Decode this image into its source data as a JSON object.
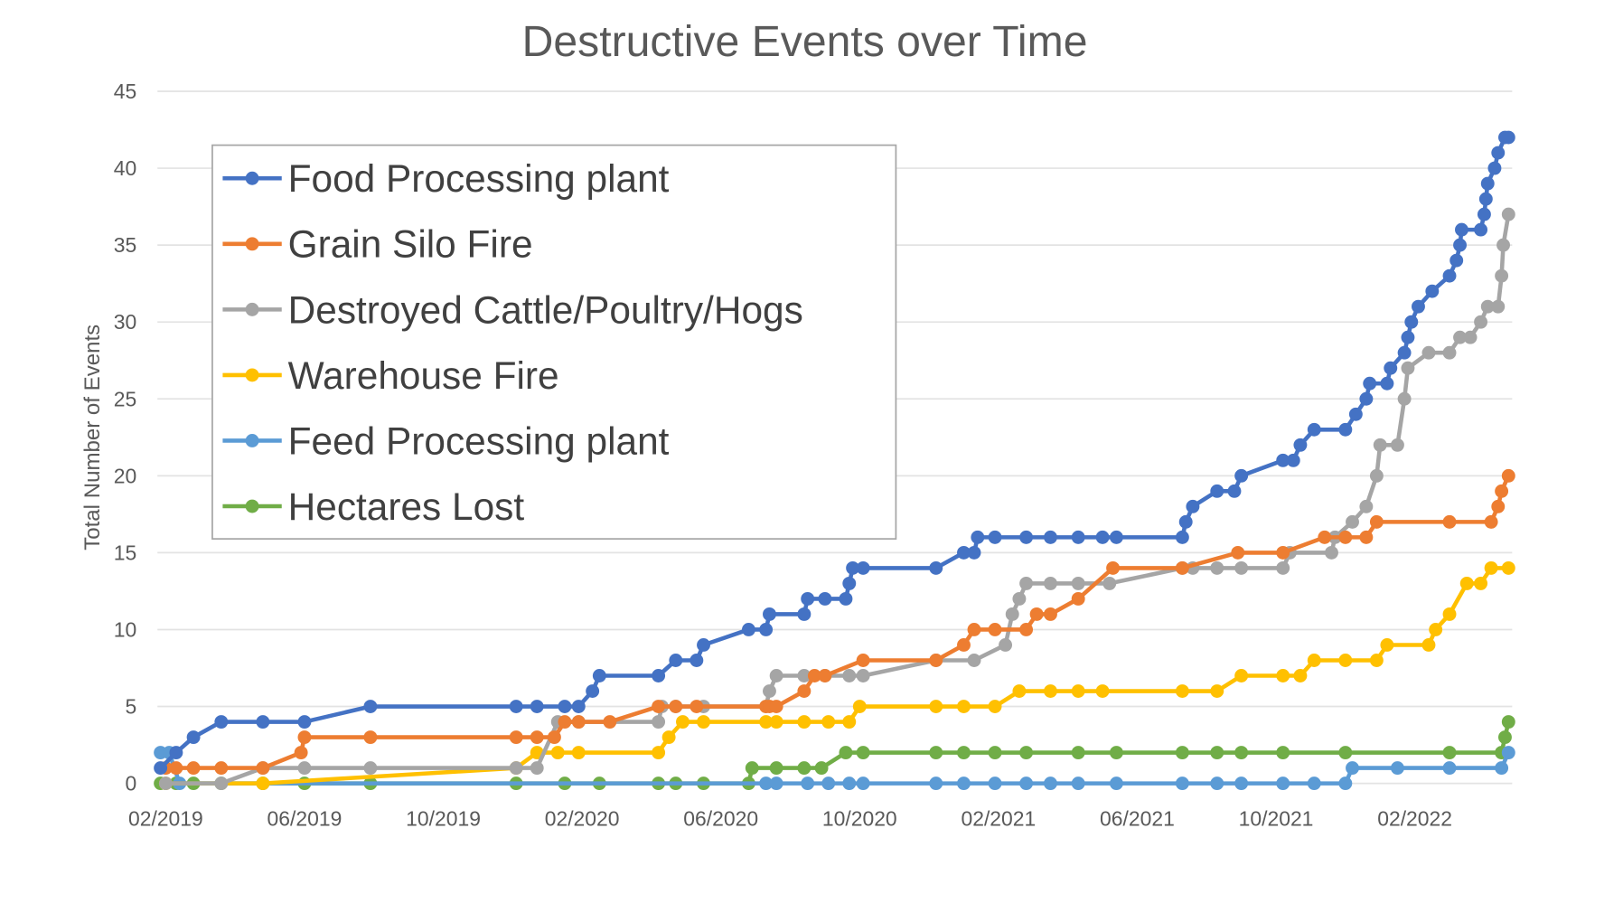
{
  "chart_data": {
    "type": "line",
    "title": "Destructive Events over Time",
    "xlabel": "",
    "ylabel": "Total Number of Events",
    "x_unit": "months since 02/2019",
    "xlim": [
      -0.2,
      38.8
    ],
    "ylim": [
      0,
      45
    ],
    "yticks": [
      0,
      5,
      10,
      15,
      20,
      25,
      30,
      35,
      40,
      45
    ],
    "xticks": [
      {
        "value": 0,
        "label": "02/2019"
      },
      {
        "value": 4,
        "label": "06/2019"
      },
      {
        "value": 8,
        "label": "10/2019"
      },
      {
        "value": 12,
        "label": "02/2020"
      },
      {
        "value": 16,
        "label": "06/2020"
      },
      {
        "value": 20,
        "label": "10/2020"
      },
      {
        "value": 24,
        "label": "02/2021"
      },
      {
        "value": 28,
        "label": "06/2021"
      },
      {
        "value": 32,
        "label": "10/2021"
      },
      {
        "value": 36,
        "label": "02/2022"
      }
    ],
    "grid": true,
    "legend_position": "top-left",
    "series": [
      {
        "name": "Food Processing plant",
        "color": "#4472C4",
        "x": [
          -0.15,
          0.3,
          0.8,
          1.6,
          2.8,
          4.0,
          5.9,
          10.1,
          10.7,
          11.5,
          11.9,
          12.3,
          12.5,
          14.2,
          14.7,
          15.3,
          15.5,
          16.8,
          17.3,
          17.4,
          18.4,
          18.5,
          19.0,
          19.6,
          19.7,
          19.8,
          20.1,
          22.2,
          23.0,
          23.3,
          23.4,
          23.9,
          24.8,
          25.5,
          26.3,
          27.0,
          27.4,
          29.3,
          29.4,
          29.6,
          30.3,
          30.8,
          31.0,
          32.2,
          32.5,
          32.7,
          33.1,
          34.0,
          34.3,
          34.6,
          34.7,
          35.2,
          35.3,
          35.7,
          35.8,
          35.9,
          36.1,
          36.5,
          37.0,
          37.2,
          37.3,
          37.35,
          37.9,
          38.0,
          38.05,
          38.1,
          38.3,
          38.4,
          38.6,
          38.7
        ],
        "y": [
          1,
          2,
          3,
          4,
          4,
          4,
          5,
          5,
          5,
          5,
          5,
          6,
          7,
          7,
          8,
          8,
          9,
          10,
          10,
          11,
          11,
          12,
          12,
          12,
          13,
          14,
          14,
          14,
          15,
          15,
          16,
          16,
          16,
          16,
          16,
          16,
          16,
          16,
          17,
          18,
          19,
          19,
          20,
          21,
          21,
          22,
          23,
          23,
          24,
          25,
          26,
          26,
          27,
          28,
          29,
          30,
          31,
          32,
          33,
          34,
          35,
          36,
          36,
          37,
          38,
          39,
          40,
          41,
          42,
          42
        ]
      },
      {
        "name": "Grain Silo Fire",
        "color": "#ED7D31",
        "x": [
          0,
          0.3,
          0.8,
          1.6,
          2.8,
          3.9,
          4.0,
          5.9,
          10.1,
          10.7,
          11.2,
          11.5,
          11.9,
          12.8,
          14.2,
          14.7,
          15.3,
          17.3,
          17.4,
          17.6,
          18.4,
          18.7,
          19.0,
          20.1,
          22.2,
          23.0,
          23.3,
          23.9,
          24.8,
          25.1,
          25.5,
          26.3,
          27.3,
          29.3,
          30.9,
          32.2,
          33.4,
          34.0,
          34.6,
          34.9,
          37.0,
          38.2,
          38.4,
          38.5,
          38.7
        ],
        "y": [
          1,
          1,
          1,
          1,
          1,
          2,
          3,
          3,
          3,
          3,
          3,
          4,
          4,
          4,
          5,
          5,
          5,
          5,
          5,
          5,
          6,
          7,
          7,
          8,
          8,
          9,
          10,
          10,
          10,
          11,
          11,
          12,
          14,
          14,
          15,
          15,
          16,
          16,
          16,
          17,
          17,
          17,
          18,
          19,
          20
        ]
      },
      {
        "name": "Destroyed Cattle/Poultry/Hogs",
        "color": "#A5A5A5",
        "x": [
          0,
          1.6,
          2.8,
          4.0,
          5.9,
          10.1,
          10.7,
          11.3,
          11.9,
          14.2,
          14.3,
          14.7,
          15.5,
          17.3,
          17.4,
          17.6,
          18.4,
          19.0,
          19.7,
          20.1,
          22.2,
          23.3,
          24.2,
          24.4,
          24.6,
          24.8,
          25.5,
          26.3,
          27.2,
          29.3,
          29.6,
          30.3,
          31.0,
          32.2,
          32.4,
          33.6,
          33.7,
          34.2,
          34.6,
          34.9,
          35.0,
          35.5,
          35.7,
          35.8,
          36.4,
          37.0,
          37.3,
          37.6,
          37.9,
          38.1,
          38.4,
          38.5,
          38.55,
          38.7
        ],
        "y": [
          0,
          0,
          1,
          1,
          1,
          1,
          1,
          4,
          4,
          4,
          5,
          5,
          5,
          5,
          6,
          7,
          7,
          7,
          7,
          7,
          8,
          8,
          9,
          11,
          12,
          13,
          13,
          13,
          13,
          14,
          14,
          14,
          14,
          14,
          15,
          15,
          16,
          17,
          18,
          20,
          22,
          22,
          25,
          27,
          28,
          28,
          29,
          29,
          30,
          31,
          31,
          33,
          35,
          37
        ]
      },
      {
        "name": "Warehouse Fire",
        "color": "#FFC000",
        "x": [
          0,
          2.8,
          10.1,
          10.7,
          11.3,
          11.9,
          14.2,
          14.5,
          14.9,
          15.5,
          17.3,
          17.6,
          18.4,
          19.1,
          19.7,
          20.0,
          22.2,
          23.0,
          23.9,
          24.6,
          25.5,
          26.3,
          27.0,
          29.3,
          30.3,
          31.0,
          32.2,
          32.7,
          33.1,
          34.0,
          34.9,
          35.2,
          36.4,
          36.6,
          37.0,
          37.5,
          37.9,
          38.2,
          38.7
        ],
        "y": [
          0,
          0,
          1,
          2,
          2,
          2,
          2,
          3,
          4,
          4,
          4,
          4,
          4,
          4,
          4,
          5,
          5,
          5,
          5,
          6,
          6,
          6,
          6,
          6,
          6,
          7,
          7,
          7,
          8,
          8,
          8,
          9,
          9,
          10,
          11,
          13,
          13,
          14,
          14
        ]
      },
      {
        "name": "Feed Processing plant",
        "color": "#5B9BD5",
        "x": [
          -0.15,
          0.1,
          0.4,
          17.3,
          17.6,
          18.5,
          19.1,
          19.7,
          20.1,
          22.2,
          23.0,
          23.9,
          24.8,
          25.5,
          26.3,
          27.4,
          29.3,
          30.3,
          31.0,
          32.2,
          33.1,
          34.0,
          34.2,
          35.5,
          37.0,
          38.5,
          38.7
        ],
        "y": [
          2,
          2,
          0,
          0,
          0,
          0,
          0,
          0,
          0,
          0,
          0,
          0,
          0,
          0,
          0,
          0,
          0,
          0,
          0,
          0,
          0,
          0,
          1,
          1,
          1,
          1,
          2
        ]
      },
      {
        "name": "Hectares Lost",
        "color": "#70AD47",
        "x": [
          -0.15,
          0.3,
          0.8,
          1.6,
          2.8,
          4.0,
          5.9,
          10.1,
          11.5,
          12.5,
          14.2,
          14.7,
          15.5,
          16.8,
          16.9,
          17.6,
          18.4,
          18.9,
          19.6,
          20.1,
          22.2,
          23.0,
          23.9,
          24.8,
          26.3,
          27.4,
          29.3,
          30.3,
          31.0,
          32.2,
          34.0,
          37.0,
          38.5,
          38.6,
          38.7
        ],
        "y": [
          0,
          0,
          0,
          0,
          0,
          0,
          0,
          0,
          0,
          0,
          0,
          0,
          0,
          0,
          1,
          1,
          1,
          1,
          2,
          2,
          2,
          2,
          2,
          2,
          2,
          2,
          2,
          2,
          2,
          2,
          2,
          2,
          2,
          3,
          4
        ]
      }
    ]
  }
}
